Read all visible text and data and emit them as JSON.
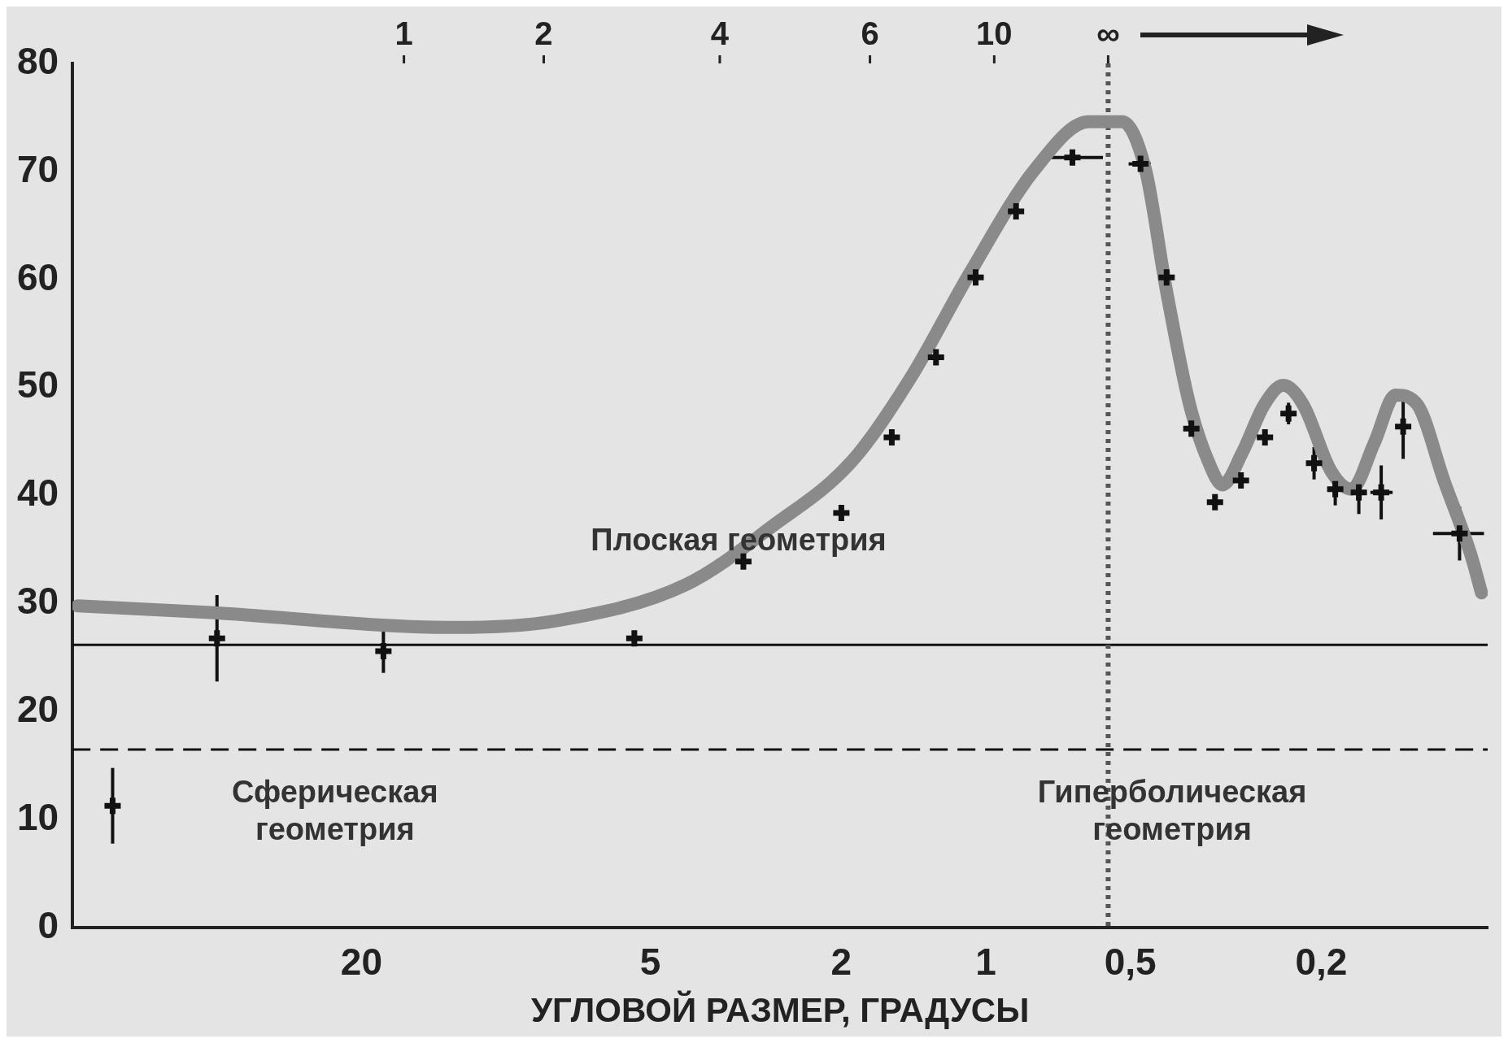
{
  "chart_data": {
    "type": "scatter",
    "xlabel": "УГЛОВОЙ РАЗМЕР, ГРАДУСЫ",
    "annotations": [
      "Плоская геометрия",
      "Сферическая геометрия",
      "Гиперболическая геометрия",
      "1",
      "2",
      "4",
      "6",
      "10",
      "∞"
    ],
    "log": "x",
    "xlim": [
      80,
      0.09
    ],
    "xticks": [
      20,
      5,
      2,
      1,
      {
        "value": 0.5,
        "label": "0,5"
      },
      {
        "value": 0.2,
        "label": "0,2"
      }
    ],
    "ylim": [
      0,
      80
    ],
    "yticks": [
      0,
      10,
      20,
      30,
      40,
      50,
      60,
      70,
      80
    ],
    "grid": false,
    "legend": false,
    "ref_lines": [
      {
        "axis": "y",
        "value": 26.2,
        "color": "#111111",
        "line_style": "solid"
      },
      {
        "axis": "y",
        "value": 16.5,
        "color": "#111111",
        "line_style": "dashed"
      },
      {
        "axis": "x",
        "value": 0.556,
        "color": "#555555",
        "line_style": "dotted"
      }
    ],
    "series": [
      {
        "type": "line",
        "color": "#8a8a8a",
        "marker": "none",
        "line_style": "solid",
        "x": [
          78,
          42,
          12.8,
          7.9,
          4.2,
          2.8,
          1.9,
          1.43,
          1.08,
          0.79,
          0.61,
          0.52,
          0.465,
          0.42,
          0.376,
          0.344,
          0.321,
          0.292,
          0.263,
          0.24,
          0.218,
          0.191,
          0.173,
          0.155,
          0.14,
          0.126,
          0.111,
          0.0975,
          0.0927
        ],
        "values": [
          29.8,
          29.2,
          27.8,
          28.4,
          31.8,
          37.1,
          43.2,
          51,
          60.6,
          70.2,
          74.6,
          74.6,
          70.2,
          58.9,
          48.4,
          43.2,
          41,
          44,
          48.4,
          50.2,
          48.4,
          42.3,
          40.6,
          44.9,
          49.3,
          48.4,
          41.4,
          34.5,
          31
        ]
      },
      {
        "type": "scatter",
        "color": "#111111",
        "marker": "cross",
        "x": [
          66,
          40,
          18,
          5.4,
          3.2,
          2,
          1.57,
          1.27,
          1.05,
          0.865,
          0.66,
          0.476,
          0.42,
          0.373,
          0.333,
          0.294,
          0.262,
          0.234,
          0.207,
          0.187,
          0.167,
          0.15,
          0.135,
          0.103
        ],
        "values": [
          11.3,
          26.8,
          25.6,
          26.8,
          33.9,
          38.4,
          45.4,
          52.8,
          60.2,
          66.3,
          71.3,
          70.7,
          60.2,
          46.2,
          39.4,
          41.4,
          45.4,
          47.6,
          43,
          40.6,
          40.3,
          40.3,
          46.4,
          36.5
        ],
        "errors": [
          3.5,
          4,
          2,
          0.7,
          null,
          null,
          null,
          null,
          null,
          null,
          null,
          null,
          null,
          null,
          null,
          null,
          null,
          1,
          1.5,
          1.5,
          2,
          2.5,
          3,
          2.5
        ],
        "xerrors": [
          null,
          null,
          null,
          null,
          null,
          null,
          null,
          null,
          null,
          null,
          [
            0.57,
            0.77
          ],
          [
            0.453,
            0.504
          ],
          null,
          null,
          null,
          null,
          null,
          null,
          null,
          null,
          null,
          [
            0.142,
            0.158
          ],
          null,
          [
            0.0916,
            0.117
          ]
        ]
      }
    ]
  }
}
